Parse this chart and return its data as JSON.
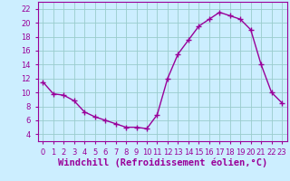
{
  "hours": [
    0,
    1,
    2,
    3,
    4,
    5,
    6,
    7,
    8,
    9,
    10,
    11,
    12,
    13,
    14,
    15,
    16,
    17,
    18,
    19,
    20,
    21,
    22,
    23
  ],
  "values": [
    11.5,
    9.8,
    9.6,
    8.8,
    7.2,
    6.5,
    6.0,
    5.5,
    5.0,
    5.0,
    4.8,
    6.8,
    12.0,
    15.5,
    17.5,
    19.5,
    20.5,
    21.5,
    21.0,
    20.5,
    19.0,
    14.0,
    10.0,
    8.5
  ],
  "line_color": "#990099",
  "marker": "+",
  "marker_size": 4,
  "marker_lw": 1.0,
  "background_color": "#cceeff",
  "grid_color": "#99cccc",
  "xlabel": "Windchill (Refroidissement éolien,°C)",
  "xlabel_color": "#990099",
  "xlabel_fontsize": 7.5,
  "ylim": [
    3,
    23
  ],
  "xlim": [
    -0.5,
    23.5
  ],
  "yticks": [
    4,
    6,
    8,
    10,
    12,
    14,
    16,
    18,
    20,
    22
  ],
  "xticks": [
    0,
    1,
    2,
    3,
    4,
    5,
    6,
    7,
    8,
    9,
    10,
    11,
    12,
    13,
    14,
    15,
    16,
    17,
    18,
    19,
    20,
    21,
    22,
    23
  ],
  "tick_fontsize": 6,
  "tick_color": "#990099",
  "spine_color": "#990099",
  "line_width": 1.0
}
